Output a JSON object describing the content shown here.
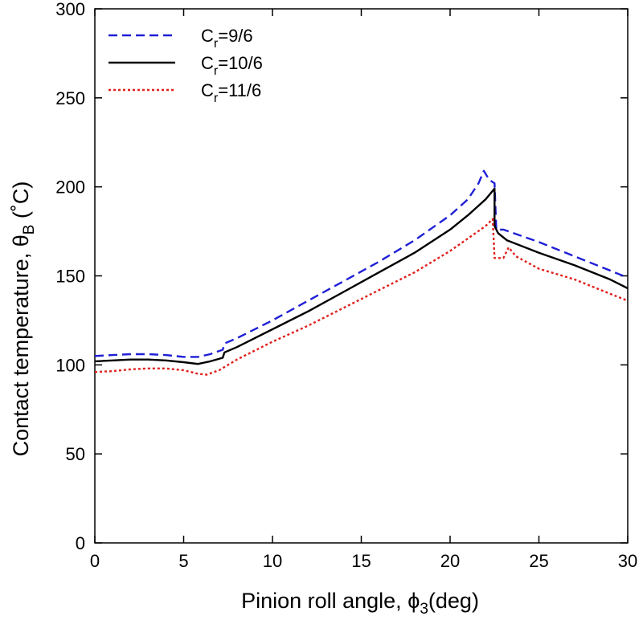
{
  "chart_data": {
    "type": "line",
    "xlabel": {
      "main": "Pinion roll angle, ",
      "symbol": "ϕ",
      "sub": "3",
      "rest": "(deg)"
    },
    "ylabel": {
      "main": "Contact temperature, ",
      "symbol": "θ",
      "sub": "B",
      "rest": " (",
      "degree": "˚",
      "unit": "C)"
    },
    "xlim": [
      0,
      30
    ],
    "ylim": [
      0,
      300
    ],
    "xticks": [
      0,
      5,
      10,
      15,
      20,
      25,
      30
    ],
    "yticks": [
      0,
      50,
      100,
      150,
      200,
      250,
      300
    ],
    "grid": false,
    "legend_position": "top-left",
    "series": [
      {
        "name": "Cr=9/6",
        "label_main": "C",
        "label_sub": "r",
        "label_rest": "=9/6",
        "color": "#1f1fd6",
        "style": "dashed",
        "points": [
          [
            0,
            105
          ],
          [
            1,
            105.5
          ],
          [
            2,
            106
          ],
          [
            3,
            106
          ],
          [
            4,
            105.5
          ],
          [
            5,
            104.5
          ],
          [
            5.8,
            104.5
          ],
          [
            6.5,
            106
          ],
          [
            7.2,
            108.5
          ],
          [
            7.3,
            112
          ],
          [
            8,
            115
          ],
          [
            10,
            125
          ],
          [
            12,
            136
          ],
          [
            14,
            147
          ],
          [
            16,
            158
          ],
          [
            18,
            170
          ],
          [
            20,
            184
          ],
          [
            21,
            193
          ],
          [
            21.6,
            202
          ],
          [
            21.9,
            209
          ],
          [
            22.2,
            204
          ],
          [
            22.5,
            202
          ],
          [
            22.6,
            176
          ],
          [
            23,
            176
          ],
          [
            25,
            169
          ],
          [
            27,
            161
          ],
          [
            29,
            153
          ],
          [
            30,
            149
          ]
        ]
      },
      {
        "name": "Cr=10/6",
        "label_main": "C",
        "label_sub": "r",
        "label_rest": "=10/6",
        "color": "#000000",
        "style": "solid",
        "points": [
          [
            0,
            102
          ],
          [
            1,
            102.5
          ],
          [
            2,
            103
          ],
          [
            3,
            103
          ],
          [
            4,
            102.5
          ],
          [
            5,
            101.5
          ],
          [
            5.8,
            100.5
          ],
          [
            6.5,
            102
          ],
          [
            7.2,
            104
          ],
          [
            7.3,
            107
          ],
          [
            8,
            110
          ],
          [
            10,
            120
          ],
          [
            12,
            130
          ],
          [
            14,
            141
          ],
          [
            16,
            152
          ],
          [
            18,
            163
          ],
          [
            20,
            176
          ],
          [
            21,
            184
          ],
          [
            22,
            193
          ],
          [
            22.5,
            199
          ],
          [
            22.5,
            178
          ],
          [
            22.7,
            174
          ],
          [
            23.2,
            170
          ],
          [
            25,
            163
          ],
          [
            27,
            156
          ],
          [
            29,
            148
          ],
          [
            30,
            143
          ]
        ]
      },
      {
        "name": "Cr=11/6",
        "label_main": "C",
        "label_sub": "r",
        "label_rest": "=11/6",
        "color": "#e0201c",
        "style": "dotted",
        "points": [
          [
            0,
            96
          ],
          [
            1,
            96.5
          ],
          [
            2,
            97.5
          ],
          [
            3,
            98
          ],
          [
            4,
            98
          ],
          [
            5,
            97
          ],
          [
            5.8,
            95
          ],
          [
            6.3,
            94.5
          ],
          [
            7,
            97
          ],
          [
            8,
            103
          ],
          [
            10,
            113
          ],
          [
            12,
            122
          ],
          [
            14,
            132
          ],
          [
            16,
            142
          ],
          [
            18,
            152
          ],
          [
            20,
            164
          ],
          [
            21,
            171
          ],
          [
            22,
            178
          ],
          [
            22.4,
            182
          ],
          [
            22.5,
            160
          ],
          [
            23,
            160
          ],
          [
            23.3,
            166
          ],
          [
            23.7,
            161
          ],
          [
            25,
            154
          ],
          [
            27,
            148
          ],
          [
            29,
            140
          ],
          [
            30,
            136
          ]
        ]
      }
    ]
  }
}
